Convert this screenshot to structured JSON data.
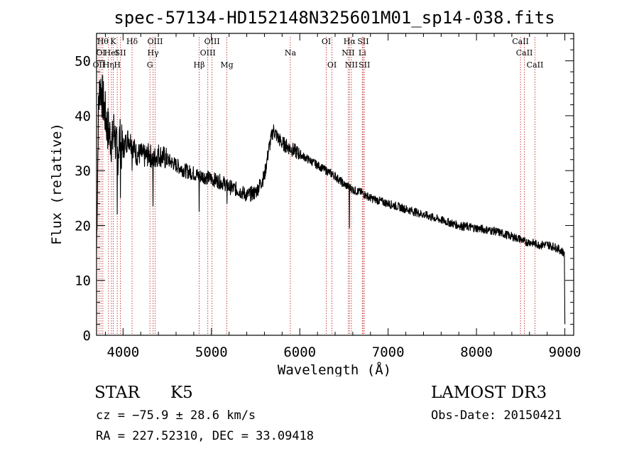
{
  "chart_data": {
    "type": "line",
    "title": "spec-57134-HD152148N325601M01_sp14-038.fits",
    "xlabel": "Wavelength (Å)",
    "ylabel": "Flux (relative)",
    "xlim": [
      3700,
      9100
    ],
    "ylim": [
      0,
      55
    ],
    "xticks": [
      4000,
      5000,
      6000,
      7000,
      8000,
      9000
    ],
    "yticks": [
      0,
      10,
      20,
      30,
      40,
      50
    ],
    "line_color": "#000000",
    "marker_color": "#c03030",
    "series": [
      {
        "name": "flux",
        "x": [
          3700,
          3720,
          3740,
          3760,
          3780,
          3800,
          3820,
          3840,
          3860,
          3880,
          3900,
          3920,
          3940,
          3960,
          3980,
          4000,
          4030,
          4060,
          4100,
          4150,
          4200,
          4250,
          4300,
          4340,
          4400,
          4500,
          4600,
          4700,
          4800,
          4860,
          4900,
          5000,
          5100,
          5170,
          5200,
          5300,
          5400,
          5500,
          5600,
          5650,
          5700,
          5750,
          5800,
          5900,
          6000,
          6100,
          6200,
          6300,
          6400,
          6500,
          6562,
          6600,
          6700,
          6800,
          6900,
          7000,
          7200,
          7400,
          7600,
          7800,
          8000,
          8200,
          8400,
          8500,
          8542,
          8600,
          8700,
          8800,
          8900,
          8950,
          8990,
          9000
        ],
        "y": [
          15,
          40,
          46,
          44,
          42,
          40,
          38,
          37,
          36,
          35,
          38,
          34,
          33,
          36,
          34,
          34,
          35,
          36,
          35,
          33,
          33,
          32.5,
          33,
          32,
          33,
          32,
          31,
          30,
          29.5,
          29,
          29,
          28.5,
          28,
          27.5,
          27,
          26.5,
          25.5,
          26,
          29,
          34,
          37.5,
          36,
          35,
          34,
          33,
          32,
          31,
          30,
          29,
          27.5,
          27,
          26.5,
          26,
          25,
          24.5,
          24,
          23,
          22,
          21,
          20,
          19.5,
          19,
          18,
          17.5,
          17,
          17,
          16.5,
          16.5,
          16,
          15.5,
          15,
          2
        ]
      }
    ],
    "absorption_dips": [
      {
        "x": 3934,
        "y": 22
      },
      {
        "x": 3969,
        "y": 25
      },
      {
        "x": 4102,
        "y": 30
      },
      {
        "x": 4340,
        "y": 23.5
      },
      {
        "x": 4861,
        "y": 22.5
      },
      {
        "x": 5175,
        "y": 24
      },
      {
        "x": 6563,
        "y": 19.5
      }
    ],
    "line_markers": [
      {
        "wave": 3727,
        "label": "OII",
        "row": 3
      },
      {
        "wave": 3750,
        "label": "OI",
        "row": 2
      },
      {
        "wave": 3771,
        "label": "Hθ",
        "row": 1
      },
      {
        "wave": 3835,
        "label": "Hη",
        "row": 3
      },
      {
        "wave": 3868,
        "label": "HeI",
        "row": 2
      },
      {
        "wave": 3889,
        "label": "K",
        "row": 1
      },
      {
        "wave": 3934,
        "label": "H",
        "row": 3
      },
      {
        "wave": 3970,
        "label": "SII",
        "row": 2
      },
      {
        "wave": 4102,
        "label": "Hδ",
        "row": 1
      },
      {
        "wave": 4304,
        "label": "G",
        "row": 3
      },
      {
        "wave": 4340,
        "label": "Hγ",
        "row": 2
      },
      {
        "wave": 4363,
        "label": "OIII",
        "row": 1
      },
      {
        "wave": 4861,
        "label": "Hβ",
        "row": 3
      },
      {
        "wave": 4959,
        "label": "OIII",
        "row": 2
      },
      {
        "wave": 5007,
        "label": "OIII",
        "row": 1
      },
      {
        "wave": 5175,
        "label": "Mg",
        "row": 3
      },
      {
        "wave": 5893,
        "label": "Na",
        "row": 2
      },
      {
        "wave": 6300,
        "label": "OI",
        "row": 1
      },
      {
        "wave": 6364,
        "label": "OI",
        "row": 3
      },
      {
        "wave": 6548,
        "label": "NII",
        "row": 2
      },
      {
        "wave": 6563,
        "label": "Hα",
        "row": 1
      },
      {
        "wave": 6584,
        "label": "NII",
        "row": 3
      },
      {
        "wave": 6708,
        "label": "Li",
        "row": 2
      },
      {
        "wave": 6717,
        "label": "SII",
        "row": 1
      },
      {
        "wave": 6731,
        "label": "SII",
        "row": 3
      },
      {
        "wave": 8498,
        "label": "CaII",
        "row": 1
      },
      {
        "wave": 8542,
        "label": "CaII",
        "row": 2
      },
      {
        "wave": 8662,
        "label": "CaII",
        "row": 3
      }
    ]
  },
  "info": {
    "class_label": "STAR",
    "subclass": "K5",
    "survey": "LAMOST DR3",
    "redshift": "cz = −75.9 ± 28.6 km/s",
    "obs_date": "Obs-Date: 20150421",
    "coords": "RA = 227.52310, DEC =  33.09418"
  }
}
